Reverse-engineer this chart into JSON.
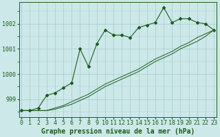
{
  "title": "Graphe pression niveau de la mer (hPa)",
  "bg_color": "#cce8e8",
  "line_color": "#1a5c1a",
  "hours": [
    0,
    1,
    2,
    3,
    4,
    5,
    6,
    7,
    8,
    9,
    10,
    11,
    12,
    13,
    14,
    15,
    16,
    17,
    18,
    19,
    20,
    21,
    22,
    23
  ],
  "pressure": [
    998.55,
    998.55,
    998.65,
    999.15,
    999.25,
    999.45,
    999.65,
    1001.0,
    1000.3,
    1001.2,
    1001.75,
    1001.55,
    1001.55,
    1001.45,
    1001.85,
    1001.95,
    1002.05,
    1002.65,
    1002.05,
    1002.2,
    1002.2,
    1002.05,
    1002.0,
    1001.75
  ],
  "line_trend1": [
    998.55,
    998.55,
    998.55,
    998.55,
    998.65,
    998.75,
    998.9,
    999.05,
    999.2,
    999.4,
    999.6,
    999.75,
    999.9,
    1000.05,
    1000.2,
    1000.4,
    1000.6,
    1000.75,
    1000.9,
    1001.1,
    1001.25,
    1001.45,
    1001.6,
    1001.75
  ],
  "line_trend2": [
    998.55,
    998.55,
    998.55,
    998.55,
    998.6,
    998.7,
    998.8,
    998.95,
    999.1,
    999.3,
    999.5,
    999.65,
    999.8,
    999.95,
    1000.1,
    1000.3,
    1000.5,
    1000.65,
    1000.8,
    1001.0,
    1001.15,
    1001.3,
    1001.5,
    1001.75
  ],
  "ylim": [
    998.3,
    1002.85
  ],
  "yticks": [
    999,
    1000,
    1001,
    1002
  ],
  "tick_fontsize": 6.0,
  "xlabel_fontsize": 7.0
}
